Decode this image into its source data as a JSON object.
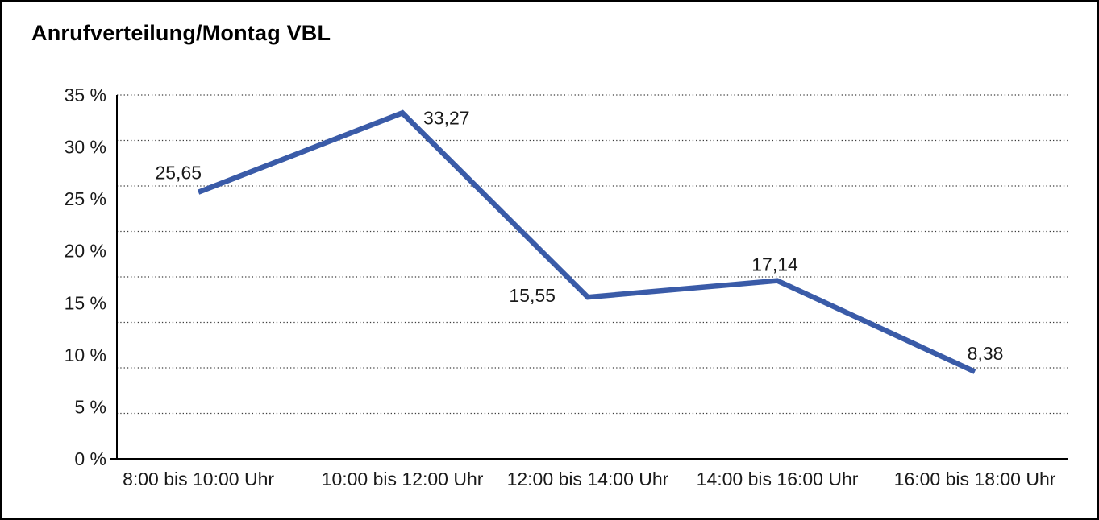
{
  "page": {
    "background": "#ffffff",
    "border_color": "#000000"
  },
  "header": {
    "title": "Anrufverteilung/Montag VBL"
  },
  "chart_data": {
    "type": "line",
    "title": "Anrufverteilung/Montag VBL",
    "categories": [
      "8:00 bis 10:00 Uhr",
      "10:00 bis 12:00 Uhr",
      "12:00 bis 14:00 Uhr",
      "14:00 bis 16:00 Uhr",
      "16:00 bis 18:00 Uhr"
    ],
    "values": [
      25.65,
      33.27,
      15.55,
      17.14,
      8.38
    ],
    "point_labels": [
      "25,65",
      "33,27",
      "15,55",
      "17,14",
      "8,38"
    ],
    "ytick_labels": [
      "35 %",
      "30 %",
      "25 %",
      "20 %",
      "15 %",
      "10 %",
      "5 %",
      "0 %"
    ],
    "ylim": [
      0,
      35
    ],
    "xlabel": "",
    "ylabel": "",
    "legend": "none",
    "grid": "dotted-horizontal",
    "gridline_divisions": 8,
    "line_color": "#3A5BA8",
    "axis_color": "#000000",
    "gridline_color": "#3c3c3c",
    "text_color": "#1a1a1a"
  }
}
